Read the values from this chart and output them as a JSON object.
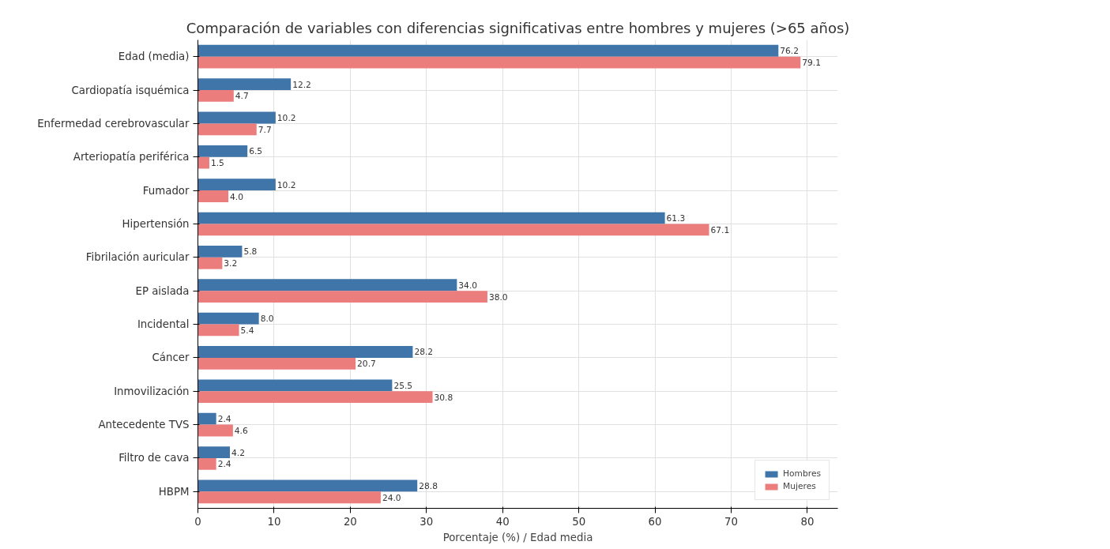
{
  "chart_data": {
    "type": "bar",
    "orientation": "horizontal",
    "title": "Comparación de variables con diferencias significativas entre hombres y mujeres (>65 años)",
    "xlabel": "Porcentaje (%) / Edad media",
    "categories": [
      "Edad (media)",
      "Cardiopatía isquémica",
      "Enfermedad cerebrovascular",
      "Arteriopatía periférica",
      "Fumador",
      "Hipertensión",
      "Fibrilación auricular",
      "EP aislada",
      "Incidental",
      "Cáncer",
      "Inmovilización",
      "Antecedente TVS",
      "Filtro de cava",
      "HBPM"
    ],
    "series": [
      {
        "name": "Hombres",
        "color": "#3f75a8",
        "values": [
          76.2,
          12.2,
          10.2,
          6.5,
          10.2,
          61.3,
          5.8,
          34,
          8,
          28.2,
          25.5,
          2.4,
          4.2,
          28.8
        ],
        "value_labels": [
          "76.2",
          "12.2",
          "10.2",
          "6.5",
          "10.2",
          "61.3",
          "5.8",
          "34.0",
          "8.0",
          "28.2",
          "25.5",
          "2.4",
          "4.2",
          "28.8"
        ]
      },
      {
        "name": "Mujeres",
        "color": "#ec7d7d",
        "values": [
          79.1,
          4.7,
          7.7,
          1.5,
          4,
          67.1,
          3.2,
          38,
          5.4,
          20.7,
          30.8,
          4.6,
          2.4,
          24
        ],
        "value_labels": [
          "79.1",
          "4.7",
          "7.7",
          "1.5",
          "4.0",
          "67.1",
          "3.2",
          "38.0",
          "5.4",
          "20.7",
          "30.8",
          "4.6",
          "2.4",
          "24.0"
        ]
      }
    ],
    "xlim": [
      0,
      84
    ],
    "xticks": [
      0,
      10,
      20,
      30,
      40,
      50,
      60,
      70,
      80
    ],
    "grid": true,
    "legend": "bottom right"
  }
}
